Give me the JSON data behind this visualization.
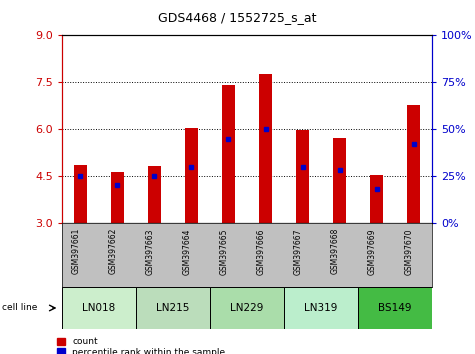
{
  "title": "GDS4468 / 1552725_s_at",
  "samples": [
    "GSM397661",
    "GSM397662",
    "GSM397663",
    "GSM397664",
    "GSM397665",
    "GSM397666",
    "GSM397667",
    "GSM397668",
    "GSM397669",
    "GSM397670"
  ],
  "counts": [
    4.85,
    4.62,
    4.82,
    6.05,
    7.42,
    7.75,
    5.98,
    5.72,
    4.52,
    6.78
  ],
  "percentile_ranks": [
    25,
    20,
    25,
    30,
    45,
    50,
    30,
    28,
    18,
    42
  ],
  "bar_color": "#cc0000",
  "marker_color": "#0000cc",
  "y_min": 3.0,
  "y_max": 9.0,
  "y_ticks_left": [
    3.0,
    4.5,
    6.0,
    7.5,
    9.0
  ],
  "y_ticks_right": [
    0,
    25,
    50,
    75,
    100
  ],
  "cell_lines": [
    {
      "name": "LN018",
      "start": 0,
      "end": 1,
      "color": "#cceecc"
    },
    {
      "name": "LN215",
      "start": 2,
      "end": 3,
      "color": "#bbddbb"
    },
    {
      "name": "LN229",
      "start": 4,
      "end": 5,
      "color": "#aaddaa"
    },
    {
      "name": "LN319",
      "start": 6,
      "end": 7,
      "color": "#bbeecc"
    },
    {
      "name": "BS149",
      "start": 8,
      "end": 9,
      "color": "#44bb44"
    }
  ],
  "xlabel_area_color": "#c0c0c0",
  "background_color": "#ffffff"
}
